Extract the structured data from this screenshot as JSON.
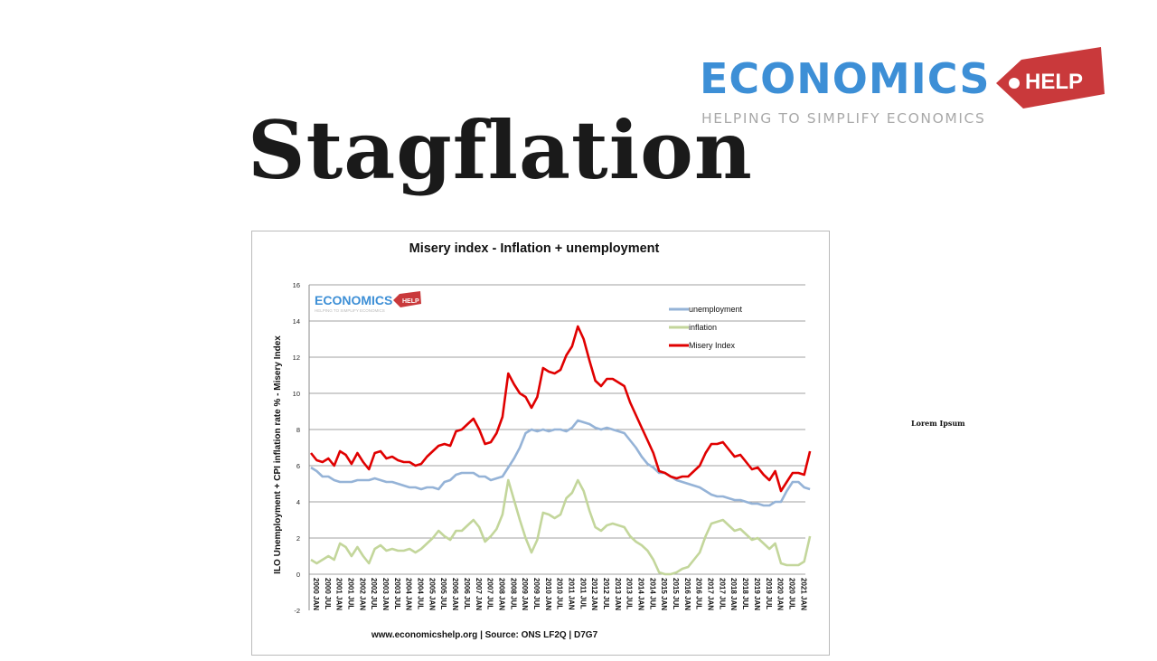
{
  "logo": {
    "main": "ECONOMICS",
    "tag": "HELP",
    "sub": "HELPING TO SIMPLIFY ECONOMICS"
  },
  "page_title": "Stagflation",
  "side_note": "Lorem Ipsum",
  "colors": {
    "unemployment": "#95b3d7",
    "inflation": "#c3d69b",
    "misery": "#e00000",
    "logo_blue": "#3d8fd6",
    "logo_red": "#c9393b"
  },
  "chart_data": {
    "type": "line",
    "title": "Misery index - Inflation + unemployment",
    "ylabel": "ILO Unemployment + CPI inflation rate % - Misery Index",
    "xlabel": "",
    "source": "www.economicshelp.org | Source: ONS LF2Q | D7G7",
    "ylim": [
      -2,
      16
    ],
    "yticks": [
      -2,
      0,
      2,
      4,
      6,
      8,
      10,
      12,
      14,
      16
    ],
    "grid": true,
    "legend_position": "top-right",
    "watermark": "ECONOMICS HELP",
    "xticks": [
      "2000 JAN",
      "2000 JUL",
      "2001 JAN",
      "2001 JUL",
      "2002 JAN",
      "2002 JUL",
      "2003 JAN",
      "2003 JUL",
      "2004 JAN",
      "2004 JUL",
      "2005 JAN",
      "2005 JUL",
      "2006 JAN",
      "2006 JUL",
      "2007 JAN",
      "2007 JUL",
      "2008 JAN",
      "2008 JUL",
      "2009 JAN",
      "2009 JUL",
      "2010 JAN",
      "2010 JUL",
      "2011 JAN",
      "2011 JUL",
      "2012 JAN",
      "2012 JUL",
      "2013 JAN",
      "2013 JUL",
      "2014 JAN",
      "2014 JUL",
      "2015 JAN",
      "2015 JUL",
      "2016 JAN",
      "2016 JUL",
      "2017 JAN",
      "2017 JUL",
      "2018 JAN",
      "2018 JUL",
      "2019 JAN",
      "2019 JUL",
      "2020 JAN",
      "2020 JUL",
      "2021 JAN"
    ],
    "x_start_year": 2000,
    "x_step_years": 0.25,
    "series": [
      {
        "name": "unemployment",
        "values": [
          5.9,
          5.7,
          5.4,
          5.4,
          5.2,
          5.1,
          5.1,
          5.1,
          5.2,
          5.2,
          5.2,
          5.3,
          5.2,
          5.1,
          5.1,
          5.0,
          4.9,
          4.8,
          4.8,
          4.7,
          4.8,
          4.8,
          4.7,
          5.1,
          5.2,
          5.5,
          5.6,
          5.6,
          5.6,
          5.4,
          5.4,
          5.2,
          5.3,
          5.4,
          5.9,
          6.4,
          7.0,
          7.8,
          8.0,
          7.9,
          8.0,
          7.9,
          8.0,
          8.0,
          7.9,
          8.1,
          8.5,
          8.4,
          8.3,
          8.1,
          8.0,
          8.1,
          8.0,
          7.9,
          7.8,
          7.4,
          7.0,
          6.5,
          6.1,
          5.9,
          5.6,
          5.6,
          5.4,
          5.2,
          5.1,
          5.0,
          4.9,
          4.8,
          4.6,
          4.4,
          4.3,
          4.3,
          4.2,
          4.1,
          4.1,
          4.0,
          3.9,
          3.9,
          3.8,
          3.8,
          4.0,
          4.0,
          4.6,
          5.1,
          5.1,
          4.8,
          4.7
        ]
      },
      {
        "name": "inflation",
        "values": [
          0.8,
          0.6,
          0.8,
          1.0,
          0.8,
          1.7,
          1.5,
          1.0,
          1.5,
          1.0,
          0.6,
          1.4,
          1.6,
          1.3,
          1.4,
          1.3,
          1.3,
          1.4,
          1.2,
          1.4,
          1.7,
          2.0,
          2.4,
          2.1,
          1.9,
          2.4,
          2.4,
          2.7,
          3.0,
          2.6,
          1.8,
          2.1,
          2.5,
          3.3,
          5.2,
          4.1,
          3.0,
          2.0,
          1.2,
          1.9,
          3.4,
          3.3,
          3.1,
          3.3,
          4.2,
          4.5,
          5.2,
          4.6,
          3.5,
          2.6,
          2.4,
          2.7,
          2.8,
          2.7,
          2.6,
          2.1,
          1.8,
          1.6,
          1.3,
          0.8,
          0.1,
          0.0,
          0.0,
          0.1,
          0.3,
          0.4,
          0.8,
          1.2,
          2.1,
          2.8,
          2.9,
          3.0,
          2.7,
          2.4,
          2.5,
          2.2,
          1.9,
          2.0,
          1.7,
          1.4,
          1.7,
          0.6,
          0.5,
          0.5,
          0.5,
          0.7,
          2.1
        ]
      },
      {
        "name": "Misery Index",
        "values": [
          6.7,
          6.3,
          6.2,
          6.4,
          6.0,
          6.8,
          6.6,
          6.1,
          6.7,
          6.2,
          5.8,
          6.7,
          6.8,
          6.4,
          6.5,
          6.3,
          6.2,
          6.2,
          6.0,
          6.1,
          6.5,
          6.8,
          7.1,
          7.2,
          7.1,
          7.9,
          8.0,
          8.3,
          8.6,
          8.0,
          7.2,
          7.3,
          7.8,
          8.7,
          11.1,
          10.5,
          10.0,
          9.8,
          9.2,
          9.8,
          11.4,
          11.2,
          11.1,
          11.3,
          12.1,
          12.6,
          13.7,
          13.0,
          11.8,
          10.7,
          10.4,
          10.8,
          10.8,
          10.6,
          10.4,
          9.5,
          8.8,
          8.1,
          7.4,
          6.7,
          5.7,
          5.6,
          5.4,
          5.3,
          5.4,
          5.4,
          5.7,
          6.0,
          6.7,
          7.2,
          7.2,
          7.3,
          6.9,
          6.5,
          6.6,
          6.2,
          5.8,
          5.9,
          5.5,
          5.2,
          5.7,
          4.6,
          5.1,
          5.6,
          5.6,
          5.5,
          6.8
        ]
      }
    ]
  }
}
